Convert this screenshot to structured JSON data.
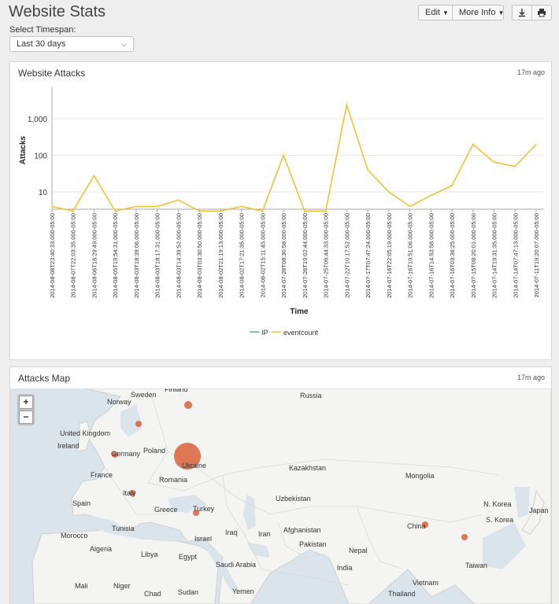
{
  "header": {
    "title": "Website Stats",
    "timespan_label": "Select Timespan:",
    "timespan_value": "Last 30 days",
    "edit_label": "Edit",
    "more_info_label": "More Info",
    "download_icon": "download-icon",
    "print_icon": "print-icon"
  },
  "attacks_panel": {
    "title": "Website Attacks",
    "updated": "17m ago"
  },
  "map_panel": {
    "title": "Attacks Map",
    "updated": "17m ago",
    "zoom_in": "+",
    "zoom_out": "−",
    "bubble_color": "#d9603b",
    "labels": [
      {
        "text": "Sweden"
      },
      {
        "text": "Finland"
      },
      {
        "text": "Russia"
      },
      {
        "text": "Norway"
      },
      {
        "text": "United Kingdom"
      },
      {
        "text": "Ireland"
      },
      {
        "text": "Germany"
      },
      {
        "text": "Poland"
      },
      {
        "text": "Ukraine"
      },
      {
        "text": "Kazakhstan"
      },
      {
        "text": "Mongolia"
      },
      {
        "text": "France"
      },
      {
        "text": "Romania"
      },
      {
        "text": "Italy"
      },
      {
        "text": "Uzbekistan"
      },
      {
        "text": "Spain"
      },
      {
        "text": "Greece"
      },
      {
        "text": "Turkey"
      },
      {
        "text": "N. Korea"
      },
      {
        "text": "S. Korea"
      },
      {
        "text": "Japan"
      },
      {
        "text": "China"
      },
      {
        "text": "Morocco"
      },
      {
        "text": "Tunisia"
      },
      {
        "text": "Afghanistan"
      },
      {
        "text": "Iraq"
      },
      {
        "text": "Iran"
      },
      {
        "text": "Israel"
      },
      {
        "text": "Pakistan"
      },
      {
        "text": "Algeria"
      },
      {
        "text": "Libya"
      },
      {
        "text": "Egypt"
      },
      {
        "text": "Nepal"
      },
      {
        "text": "Saudi Arabia"
      },
      {
        "text": "India"
      },
      {
        "text": "Taiwan"
      },
      {
        "text": "Mali"
      },
      {
        "text": "Niger"
      },
      {
        "text": "Chad"
      },
      {
        "text": "Sudan"
      },
      {
        "text": "Yemen"
      },
      {
        "text": "Vietnam"
      },
      {
        "text": "Thailand"
      }
    ],
    "bubbles": [
      {
        "place": "Ukraine",
        "size": "large"
      },
      {
        "place": "Russia",
        "size": "small"
      },
      {
        "place": "Sweden",
        "size": "small"
      },
      {
        "place": "Germany",
        "size": "small"
      },
      {
        "place": "Italy",
        "size": "small"
      },
      {
        "place": "Turkey",
        "size": "small"
      },
      {
        "place": "China",
        "size": "small"
      },
      {
        "place": "East China",
        "size": "small"
      }
    ]
  },
  "chart_data": {
    "type": "line",
    "xlabel": "Time",
    "ylabel": "Attacks",
    "y_scale": "log",
    "y_ticks": [
      "10",
      "100",
      "1,000"
    ],
    "y_tick_values": [
      10,
      100,
      1000
    ],
    "legend": [
      "IP",
      "eventcount"
    ],
    "legend_placement": "bottom",
    "series_colors": {
      "IP": "#5aa6b8",
      "eventcount": "#f1c232"
    },
    "categories": [
      "2014-08-08T23:40:33.000-05:00",
      "2014-08-07T22:03:35.000-05:00",
      "2014-08-06T16:29:49.000-05:00",
      "2014-08-05T19:54:31.000-05:00",
      "2014-08-03T18:39:06.000-05:00",
      "2014-08-03T18:17:31.000-05:00",
      "2014-08-03T14:39:52.000-05:00",
      "2014-08-03T03:30:50.000-05:00",
      "2014-08-02T21:19:13.000-05:00",
      "2014-08-02T17:21:35.000-05:00",
      "2014-08-02T15:11:45.000-05:00",
      "2014-07-28T08:30:58.000-05:00",
      "2014-07-26T19:02:44.000-05:00",
      "2014-07-25T06:44:33.000-05:00",
      "2014-07-22T10:17:52.000-05:00",
      "2014-07-17T07:47:24.000-05:00",
      "2014-07-16T22:05:19.000-05:00",
      "2014-07-16T19:51:06.000-05:00",
      "2014-07-16T14:53:58.000-05:00",
      "2014-07-16T03:36:25.000-05:00",
      "2014-07-15T08:20:01.000-05:00",
      "2014-07-14T19:31:35.000-05:00",
      "2014-07-14T07:47:13.000-05:00",
      "2014-07-11T19:20:07.000-05:00"
    ],
    "series": [
      {
        "name": "eventcount",
        "values": [
          4,
          3,
          28,
          3,
          4,
          4,
          6,
          3,
          3,
          4,
          3,
          100,
          3,
          3,
          2400,
          40,
          10,
          4,
          8,
          15,
          200,
          65,
          50,
          200
        ]
      }
    ]
  }
}
